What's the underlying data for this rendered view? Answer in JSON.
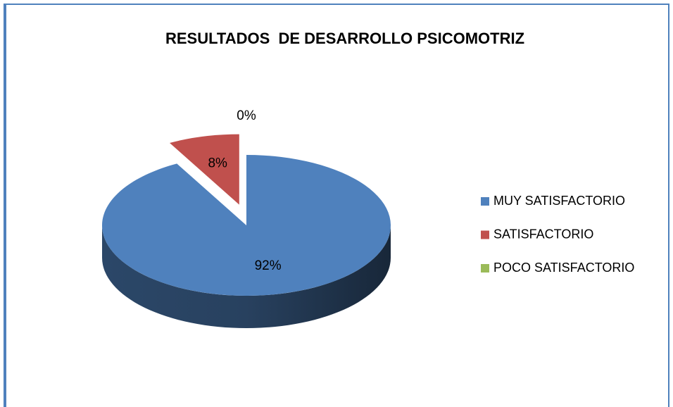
{
  "chart_data": {
    "type": "pie3d",
    "title": "RESULTADOS  DE DESARROLLO PSICOMOTRIZ",
    "categories": [
      "MUY SATISFACTORIO",
      "SATISFACTORIO",
      "POCO SATISFACTORIO"
    ],
    "values": [
      92,
      8,
      0
    ],
    "value_labels": [
      "92%",
      "8%",
      "0%"
    ],
    "colors": [
      "#4f81bd",
      "#c0504d",
      "#9bbb59"
    ],
    "legend": "right"
  }
}
